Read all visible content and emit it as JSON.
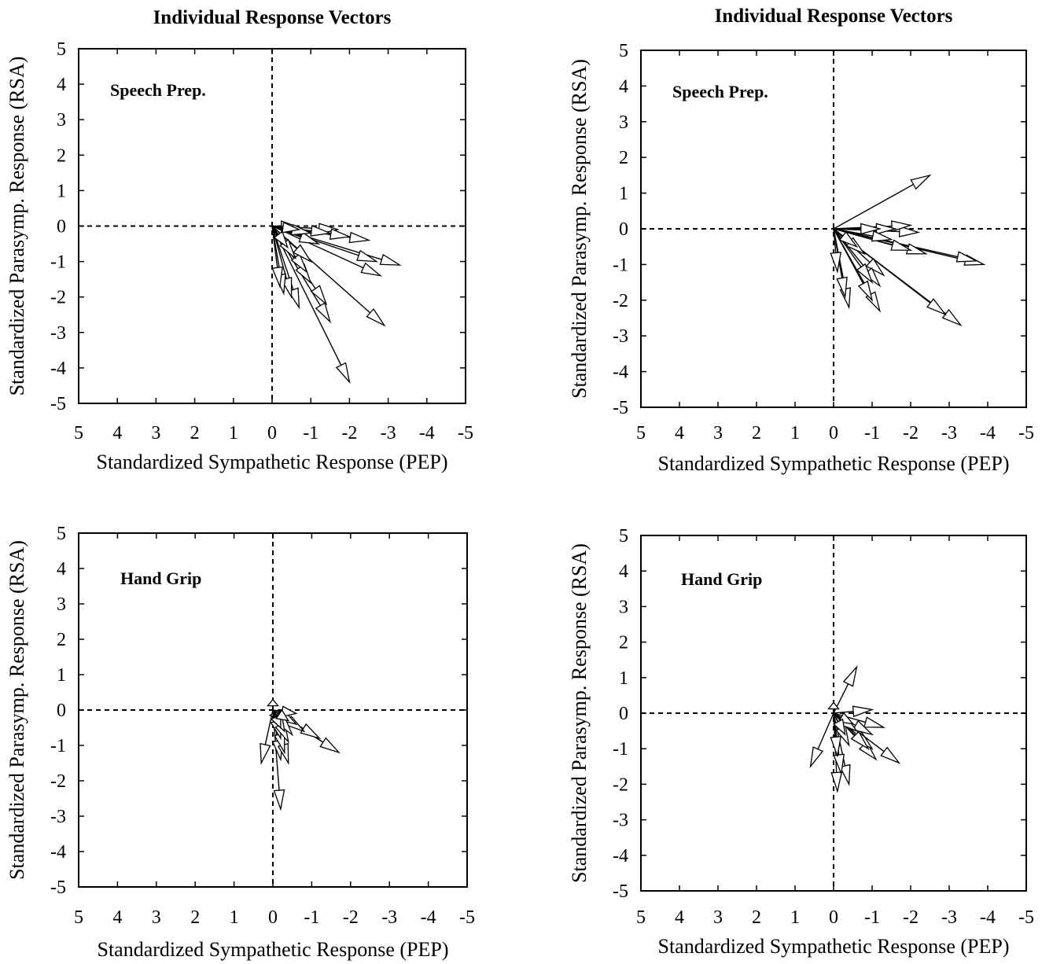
{
  "colors": {
    "stroke": "#000000",
    "background": "#ffffff",
    "arrow_fill": "#ffffff"
  },
  "chart_data": [
    {
      "type": "scatter",
      "chart_kind": "response-vectors",
      "title": "Individual Response Vectors",
      "label": "Speech Prep.",
      "xlabel": "Standardized Sympathetic Response (PEP)",
      "ylabel": "Standardized Parasymp. Response (RSA)",
      "xlim": [
        5,
        -5
      ],
      "ylim": [
        -5,
        5
      ],
      "x_ticks": [
        "5",
        "4",
        "3",
        "2",
        "1",
        "0",
        "-1",
        "-2",
        "-3",
        "-4",
        "-5"
      ],
      "y_ticks": [
        "5",
        "4",
        "3",
        "2",
        "1",
        "0",
        "-1",
        "-2",
        "-3",
        "-4",
        "-5"
      ],
      "reference_lines": {
        "x": 0,
        "y": 0,
        "style": "dashed"
      },
      "vectors": [
        [
          -0.6,
          0.0
        ],
        [
          -1.7,
          -0.1
        ],
        [
          -2.5,
          -0.4
        ],
        [
          -2.0,
          -0.3
        ],
        [
          -1.5,
          -0.2
        ],
        [
          -3.3,
          -1.1
        ],
        [
          -2.7,
          -1.0
        ],
        [
          -2.8,
          -1.4
        ],
        [
          -2.9,
          -2.8
        ],
        [
          -2.0,
          -4.4
        ],
        [
          -1.5,
          -2.7
        ],
        [
          -1.4,
          -2.2
        ],
        [
          -1.0,
          -1.6
        ],
        [
          -0.7,
          -2.3
        ],
        [
          -0.5,
          -2.0
        ],
        [
          -0.3,
          -1.9
        ],
        [
          -0.2,
          -1.7
        ],
        [
          -0.9,
          -1.3
        ],
        [
          -1.0,
          -1.0
        ],
        [
          -0.6,
          -0.9
        ],
        [
          -0.4,
          -0.6
        ],
        [
          -1.2,
          -0.5
        ],
        [
          -1.0,
          -0.2
        ],
        [
          -0.7,
          -0.1
        ]
      ]
    },
    {
      "type": "scatter",
      "chart_kind": "response-vectors",
      "title": "Individual Response Vectors",
      "label": "Speech Prep.",
      "xlabel": "Standardized Sympathetic Response (PEP)",
      "ylabel": "Standardized Parasymp. Response (RSA)",
      "xlim": [
        5,
        -5
      ],
      "ylim": [
        -5,
        5
      ],
      "x_ticks": [
        "5",
        "4",
        "3",
        "2",
        "1",
        "0",
        "-1",
        "-2",
        "-3",
        "-4",
        "-5"
      ],
      "y_ticks": [
        "5",
        "4",
        "3",
        "2",
        "1",
        "0",
        "-1",
        "-2",
        "-3",
        "-4",
        "-5"
      ],
      "reference_lines": {
        "x": 0,
        "y": 0,
        "style": "dashed"
      },
      "vectors": [
        [
          -2.5,
          1.5
        ],
        [
          -3.9,
          -1.0
        ],
        [
          -3.7,
          -0.9
        ],
        [
          -3.3,
          -2.7
        ],
        [
          -2.9,
          -2.4
        ],
        [
          -2.4,
          -0.7
        ],
        [
          -2.0,
          -0.6
        ],
        [
          -2.2,
          -0.1
        ],
        [
          -2.0,
          0.1
        ],
        [
          -1.6,
          0.0
        ],
        [
          -1.2,
          0.0
        ],
        [
          -1.5,
          -0.3
        ],
        [
          -1.3,
          -1.3
        ],
        [
          -1.2,
          -1.6
        ],
        [
          -1.0,
          -1.5
        ],
        [
          -1.2,
          -2.3
        ],
        [
          -1.0,
          -2.0
        ],
        [
          -0.4,
          -2.2
        ],
        [
          -0.3,
          -1.9
        ],
        [
          -0.1,
          -1.2
        ],
        [
          -0.8,
          -0.7
        ],
        [
          -0.6,
          -0.5
        ]
      ]
    },
    {
      "type": "scatter",
      "chart_kind": "response-vectors",
      "title": "",
      "label": "Hand Grip",
      "xlabel": "Standardized Sympathetic Response (PEP)",
      "ylabel": "Standardized Parasymp. Response (RSA)",
      "xlim": [
        5,
        -5
      ],
      "ylim": [
        -5,
        5
      ],
      "x_ticks": [
        "5",
        "4",
        "3",
        "2",
        "1",
        "0",
        "-1",
        "-2",
        "-3",
        "-4",
        "-5"
      ],
      "y_ticks": [
        "5",
        "4",
        "3",
        "2",
        "1",
        "0",
        "-1",
        "-2",
        "-3",
        "-4",
        "-5"
      ],
      "reference_lines": {
        "x": 0,
        "y": 0,
        "style": "dashed"
      },
      "vectors": [
        [
          -1.7,
          -1.2
        ],
        [
          -1.2,
          -0.8
        ],
        [
          -0.8,
          -0.6
        ],
        [
          -0.6,
          -0.4
        ],
        [
          -0.6,
          -0.1
        ],
        [
          -0.3,
          -0.3
        ],
        [
          0.3,
          -1.5
        ],
        [
          -0.1,
          -0.2
        ],
        [
          0.0,
          0.3
        ],
        [
          -0.2,
          -2.8
        ],
        [
          -0.2,
          -1.4
        ],
        [
          -0.4,
          -1.5
        ],
        [
          -0.3,
          -1.2
        ],
        [
          -0.2,
          -0.8
        ],
        [
          -0.4,
          -0.9
        ],
        [
          -0.5,
          -0.7
        ],
        [
          -0.3,
          -0.6
        ],
        [
          -0.2,
          -0.5
        ],
        [
          -0.4,
          -0.3
        ]
      ]
    },
    {
      "type": "scatter",
      "chart_kind": "response-vectors",
      "title": "",
      "label": "Hand Grip",
      "xlabel": "Standardized Sympathetic Response (PEP)",
      "ylabel": "Standardized Parasymp. Response (RSA)",
      "xlim": [
        5,
        -5
      ],
      "ylim": [
        -5,
        5
      ],
      "x_ticks": [
        "5",
        "4",
        "3",
        "2",
        "1",
        "0",
        "-1",
        "-2",
        "-3",
        "-4",
        "-5"
      ],
      "y_ticks": [
        "5",
        "4",
        "3",
        "2",
        "1",
        "0",
        "-1",
        "-2",
        "-3",
        "-4",
        "-5"
      ],
      "reference_lines": {
        "x": 0,
        "y": 0,
        "style": "dashed"
      },
      "vectors": [
        [
          -0.6,
          1.3
        ],
        [
          0.6,
          -1.5
        ],
        [
          -1.0,
          0.1
        ],
        [
          -1.3,
          -0.4
        ],
        [
          -1.0,
          -0.6
        ],
        [
          -1.1,
          -1.3
        ],
        [
          -1.0,
          -1.0
        ],
        [
          -0.9,
          -1.0
        ],
        [
          -1.7,
          -1.4
        ],
        [
          -0.4,
          -2.0
        ],
        [
          -0.1,
          -2.2
        ],
        [
          -0.2,
          -1.7
        ],
        [
          -0.1,
          -1.2
        ],
        [
          0.0,
          0.3
        ],
        [
          -0.4,
          -0.9
        ],
        [
          -0.6,
          -0.5
        ],
        [
          -0.5,
          -0.3
        ],
        [
          -0.3,
          -0.6
        ]
      ]
    }
  ]
}
